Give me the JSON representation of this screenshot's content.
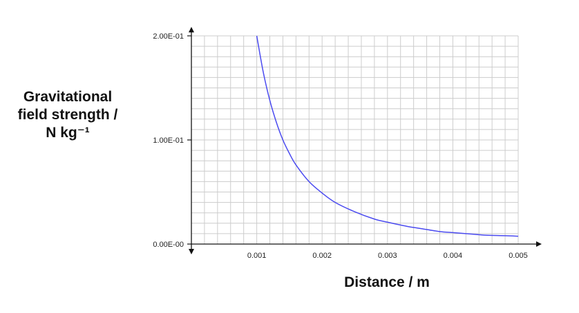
{
  "chart_data": {
    "type": "line",
    "xlabel": "Distance / m",
    "ylabel_lines": [
      "Gravitational",
      "field strength /",
      "N kg⁻¹"
    ],
    "x_ticks": [
      "0.001",
      "0.002",
      "0.003",
      "0.004",
      "0.005"
    ],
    "y_ticks": [
      "0.00E-00",
      "1.00E-01",
      "2.00E-01"
    ],
    "xlim": [
      0,
      0.005
    ],
    "ylim": [
      0,
      0.2
    ],
    "grid": true,
    "series": [
      {
        "color": "#4a4af0",
        "x": [
          0.001,
          0.0011,
          0.0012,
          0.0013,
          0.0014,
          0.0015,
          0.0016,
          0.0018,
          0.002,
          0.0022,
          0.0025,
          0.0028,
          0.003,
          0.0033,
          0.0035,
          0.0038,
          0.004,
          0.0043,
          0.0045,
          0.0048,
          0.005
        ],
        "y": [
          0.2,
          0.165,
          0.138,
          0.117,
          0.1,
          0.087,
          0.076,
          0.06,
          0.049,
          0.04,
          0.031,
          0.024,
          0.021,
          0.017,
          0.015,
          0.012,
          0.011,
          0.0095,
          0.0085,
          0.008,
          0.0075
        ]
      }
    ]
  }
}
